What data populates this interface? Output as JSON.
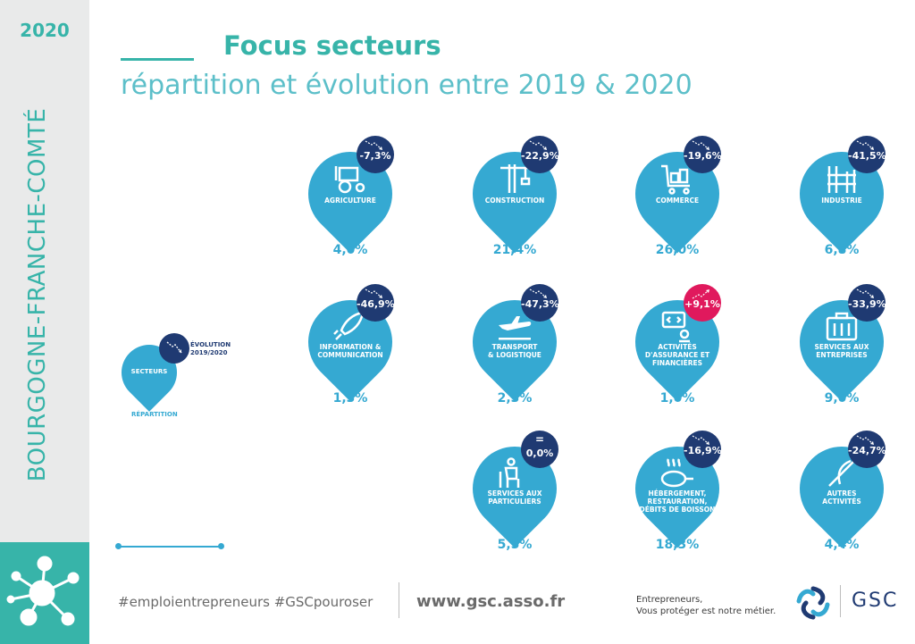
{
  "sidebar": {
    "year": "2020",
    "region": "BOURGOGNE-FRANCHE-COMTÉ"
  },
  "header": {
    "title": "Focus secteurs",
    "subtitle": "répartition et évolution entre 2019 & 2020"
  },
  "legend": {
    "sector_label": "SECTEURS",
    "evolution_label_1": "ÉVOLUTION",
    "evolution_label_2": "2019/2020",
    "distribution_label": "RÉPARTITION"
  },
  "sectors": [
    {
      "name_1": "AGRICULTURE",
      "name_2": "",
      "name_3": "",
      "evolution": "-7,3%",
      "share": "4,0%",
      "icon": "tractor-icon"
    },
    {
      "name_1": "CONSTRUCTION",
      "name_2": "",
      "name_3": "",
      "evolution": "-22,9%",
      "share": "21,4%",
      "icon": "crane-icon"
    },
    {
      "name_1": "COMMERCE",
      "name_2": "",
      "name_3": "",
      "evolution": "-19,6%",
      "share": "26,0%",
      "icon": "shopping-cart-icon"
    },
    {
      "name_1": "INDUSTRIE",
      "name_2": "",
      "name_3": "",
      "evolution": "-41,5%",
      "share": "6,8%",
      "icon": "factory-icon"
    },
    {
      "name_1": "INFORMATION &",
      "name_2": "COMMUNICATION",
      "name_3": "",
      "evolution": "-46,9%",
      "share": "1,3%",
      "icon": "rocket-icon"
    },
    {
      "name_1": "TRANSPORT",
      "name_2": "& LOGISTIQUE",
      "name_3": "",
      "evolution": "-47,3%",
      "share": "2,3%",
      "icon": "airplane-icon"
    },
    {
      "name_1": "ACTIVITÉS",
      "name_2": "D'ASSURANCE ET",
      "name_3": "FINANCIÈRES",
      "evolution": "+9,1%",
      "share": "1,0%",
      "icon": "computer-code-icon"
    },
    {
      "name_1": "SERVICES AUX",
      "name_2": "ENTREPRISES",
      "name_3": "",
      "evolution": "-33,9%",
      "share": "9,0%",
      "icon": "toolbox-icon"
    },
    {
      "name_1": "SERVICES AUX",
      "name_2": "PARTICULIERS",
      "name_3": "",
      "evolution": "0,0%",
      "evolution_symbol": "=",
      "share": "5,5%",
      "icon": "person-chair-icon"
    },
    {
      "name_1": "HÉBERGEMENT,",
      "name_2": "RESTAURATION,",
      "name_3": "DÉBITS DE BOISSON",
      "evolution": "-16,9%",
      "share": "18,3%",
      "icon": "frying-pan-icon"
    },
    {
      "name_1": "AUTRES",
      "name_2": "ACTIVITÉS",
      "name_3": "",
      "evolution": "-24,7%",
      "share": "4,4%",
      "icon": "needle-thread-icon"
    }
  ],
  "footer": {
    "hashtags": "#emploientrepreneurs #GSCpouroser",
    "website": "www.gsc.asso.fr",
    "tagline_1": "Entrepreneurs,",
    "tagline_2": "Vous protéger est notre métier.",
    "logo_text": "GSC"
  },
  "colors": {
    "teal": "#37b4a9",
    "blue": "#35a9d2",
    "navy": "#1f3a72",
    "red": "#e0195d"
  }
}
